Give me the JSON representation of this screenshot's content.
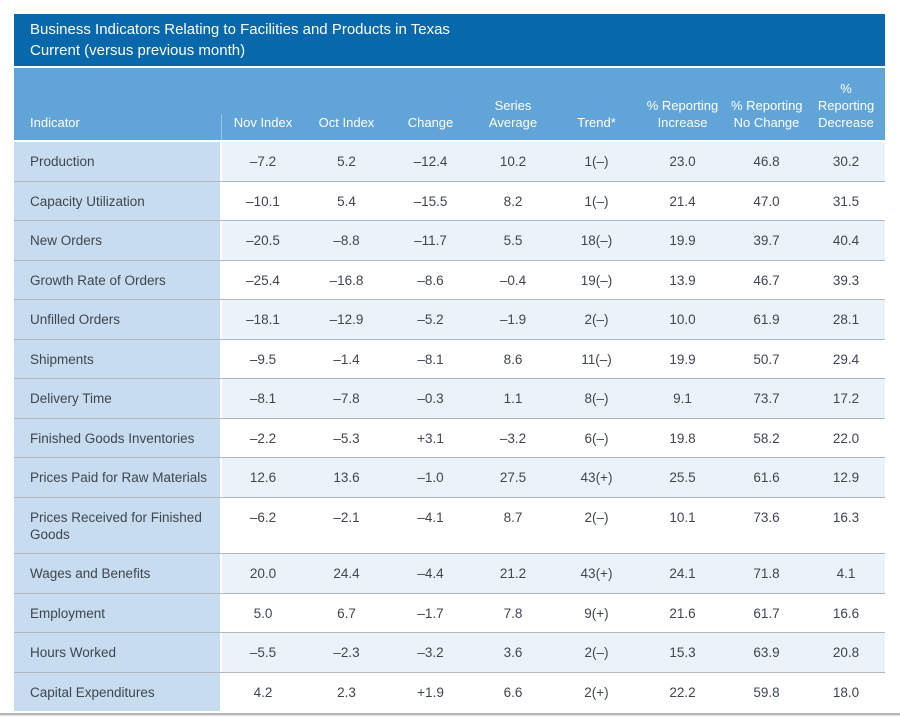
{
  "title_bar": {
    "line1": "Business Indicators Relating to Facilities and Products in Texas",
    "line2": "Current (versus previous month)"
  },
  "colors": {
    "title_bar_bg": "#0768ac",
    "header_bg": "#61a4d7",
    "header_text": "#ffffff",
    "indicator_col_bg": "#c7dcee",
    "shaded_row_bg": "#ebf3fa",
    "row_border": "#b0b9bf",
    "body_text": "#3f4650"
  },
  "chart_data": {
    "type": "table",
    "title": "Business Indicators Relating to Facilities and Products in Texas",
    "subtitle": "Current (versus previous month)",
    "columns": [
      {
        "label": "Indicator",
        "lines": [
          "Indicator"
        ]
      },
      {
        "label": "Nov Index",
        "lines": [
          "Nov Index"
        ]
      },
      {
        "label": "Oct Index",
        "lines": [
          "Oct Index"
        ]
      },
      {
        "label": "Change",
        "lines": [
          "Change"
        ]
      },
      {
        "label": "Series Average",
        "lines": [
          "Series",
          "Average"
        ]
      },
      {
        "label": "Trend*",
        "lines": [
          "Trend*"
        ]
      },
      {
        "label": "% Reporting Increase",
        "lines": [
          "% Reporting",
          "Increase"
        ]
      },
      {
        "label": "% Reporting No Change",
        "lines": [
          "% Reporting",
          "No Change"
        ]
      },
      {
        "label": "% Reporting Decrease",
        "lines": [
          "%",
          "Reporting",
          "Decrease"
        ]
      }
    ],
    "rows": [
      {
        "indicator": "Production",
        "values": [
          "–7.2",
          "5.2",
          "–12.4",
          "10.2",
          "1(–)",
          "23.0",
          "46.8",
          "30.2"
        ]
      },
      {
        "indicator": "Capacity Utilization",
        "values": [
          "–10.1",
          "5.4",
          "–15.5",
          "8.2",
          "1(–)",
          "21.4",
          "47.0",
          "31.5"
        ]
      },
      {
        "indicator": "New Orders",
        "values": [
          "–20.5",
          "–8.8",
          "–11.7",
          "5.5",
          "18(–)",
          "19.9",
          "39.7",
          "40.4"
        ]
      },
      {
        "indicator": "Growth Rate of Orders",
        "values": [
          "–25.4",
          "–16.8",
          "–8.6",
          "–0.4",
          "19(–)",
          "13.9",
          "46.7",
          "39.3"
        ]
      },
      {
        "indicator": "Unfilled Orders",
        "values": [
          "–18.1",
          "–12.9",
          "–5.2",
          "–1.9",
          "2(–)",
          "10.0",
          "61.9",
          "28.1"
        ]
      },
      {
        "indicator": "Shipments",
        "values": [
          "–9.5",
          "–1.4",
          "–8.1",
          "8.6",
          "11(–)",
          "19.9",
          "50.7",
          "29.4"
        ]
      },
      {
        "indicator": "Delivery Time",
        "values": [
          "–8.1",
          "–7.8",
          "–0.3",
          "1.1",
          "8(–)",
          "9.1",
          "73.7",
          "17.2"
        ]
      },
      {
        "indicator": "Finished Goods Inventories",
        "values": [
          "–2.2",
          "–5.3",
          "+3.1",
          "–3.2",
          "6(–)",
          "19.8",
          "58.2",
          "22.0"
        ]
      },
      {
        "indicator": "Prices Paid for Raw Materials",
        "values": [
          "12.6",
          "13.6",
          "–1.0",
          "27.5",
          "43(+)",
          "25.5",
          "61.6",
          "12.9"
        ]
      },
      {
        "indicator": "Prices Received for Finished Goods",
        "indicator_lines": [
          "Prices Received for Finished",
          "Goods"
        ],
        "values": [
          "–6.2",
          "–2.1",
          "–4.1",
          "8.7",
          "2(–)",
          "10.1",
          "73.6",
          "16.3"
        ]
      },
      {
        "indicator": "Wages and Benefits",
        "values": [
          "20.0",
          "24.4",
          "–4.4",
          "21.2",
          "43(+)",
          "24.1",
          "71.8",
          "4.1"
        ]
      },
      {
        "indicator": "Employment",
        "values": [
          "5.0",
          "6.7",
          "–1.7",
          "7.8",
          "9(+)",
          "21.6",
          "61.7",
          "16.6"
        ]
      },
      {
        "indicator": "Hours Worked",
        "values": [
          "–5.5",
          "–2.3",
          "–3.2",
          "3.6",
          "2(–)",
          "15.3",
          "63.9",
          "20.8"
        ]
      },
      {
        "indicator": "Capital Expenditures",
        "values": [
          "4.2",
          "2.3",
          "+1.9",
          "6.6",
          "2(+)",
          "22.2",
          "59.8",
          "18.0"
        ]
      }
    ]
  }
}
